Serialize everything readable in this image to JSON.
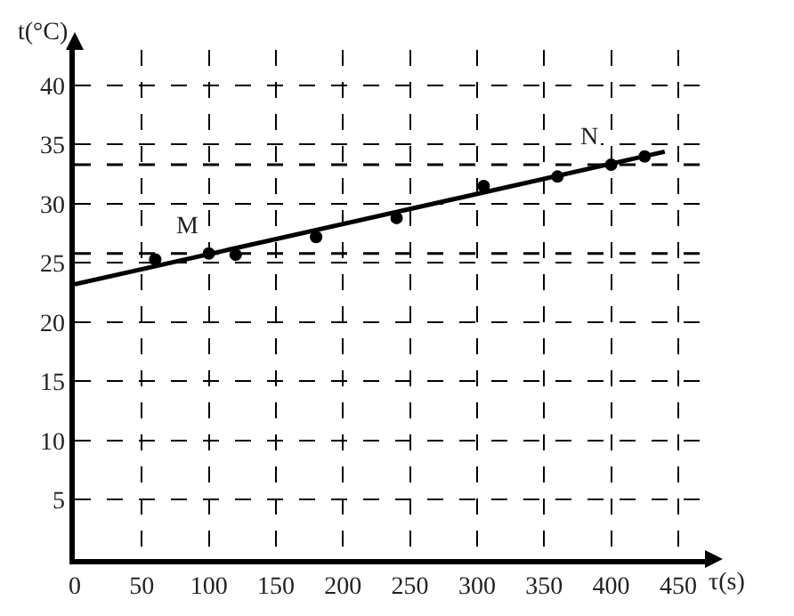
{
  "chart_data": {
    "type": "scatter",
    "xlabel": "τ(s)",
    "ylabel": "t(°C)",
    "x": [
      60,
      100,
      120,
      180,
      240,
      305,
      360,
      400,
      425
    ],
    "series": [
      {
        "color": "#000000",
        "values": [
          25.3,
          25.8,
          25.7,
          27.2,
          28.8,
          31.5,
          32.3,
          33.3,
          34.0
        ]
      },
      {
        "type": "line",
        "color": "#000000",
        "marker": "none",
        "x": [
          0,
          440
        ],
        "values": [
          23.2,
          34.4
        ]
      }
    ],
    "xlim": [
      0,
      470
    ],
    "ylim": [
      0,
      43
    ],
    "xticks": [
      0,
      50,
      100,
      150,
      200,
      250,
      300,
      350,
      400,
      450
    ],
    "yticks": [
      5,
      10,
      15,
      20,
      25,
      30,
      35,
      40
    ],
    "grid": true,
    "marker": "circle",
    "line_style": "solid",
    "ref_lines": [
      {
        "axis": "y",
        "value": 25.8,
        "color": "#000000",
        "line_style": "dashed"
      },
      {
        "axis": "y",
        "value": 33.3,
        "color": "#000000",
        "line_style": "dashed"
      }
    ],
    "annotations": [
      {
        "text": "M",
        "x": 100,
        "y": 25.8
      },
      {
        "text": "N",
        "x": 400,
        "y": 33.3
      }
    ]
  }
}
